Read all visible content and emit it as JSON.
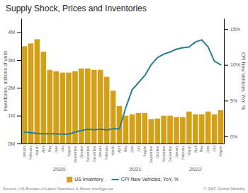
{
  "chart_data": {
    "type": "bar",
    "title": "Supply Shock, Prices and Inventories",
    "ylabel": "Inventories, millions of units",
    "y2label": "CPI New Vehicles, YoY, %",
    "source": "Source: US Bureau of Labor Statistics & Motor Intelligence",
    "credit": "© S&P Global Mobility",
    "categories": [
      "January",
      "February",
      "March",
      "April",
      "May",
      "June",
      "July",
      "August",
      "September",
      "October",
      "November",
      "December",
      "January",
      "February",
      "March",
      "April",
      "May",
      "June",
      "July",
      "August",
      "September",
      "October",
      "November",
      "December",
      "January",
      "February",
      "March",
      "April",
      "May",
      "June",
      "July",
      "August"
    ],
    "series": [
      {
        "name": "US Inventory",
        "type": "bar",
        "color": "#D4A017",
        "values": [
          3.5,
          3.6,
          3.75,
          3.3,
          2.65,
          2.6,
          2.55,
          2.55,
          2.6,
          2.7,
          2.7,
          2.65,
          2.65,
          2.4,
          1.9,
          1.35,
          1.0,
          1.05,
          1.1,
          1.1,
          0.88,
          0.9,
          1.0,
          1.0,
          0.95,
          0.95,
          1.15,
          1.05,
          1.05,
          1.15,
          1.05,
          1.2
        ]
      },
      {
        "name": "CPI New Vehicles, YoY, %",
        "type": "line",
        "color": "#2B7F8C",
        "axis": "y2",
        "values": [
          0.6,
          0.5,
          0.4,
          0.35,
          0.35,
          0.35,
          0.3,
          0.3,
          0.6,
          0.8,
          1.0,
          0.9,
          1.0,
          0.9,
          1.05,
          1.05,
          4.0,
          6.5,
          7.5,
          8.5,
          10.0,
          11.0,
          11.5,
          11.8,
          12.2,
          12.4,
          12.5,
          13.2,
          13.5,
          12.5,
          10.5,
          10.0
        ]
      }
    ],
    "annotations": [
      {
        "text": "2020",
        "x": 5.5
      },
      {
        "text": "2021",
        "x": 17.5
      },
      {
        "text": "2022",
        "x": 27.0
      }
    ],
    "ylim": [
      0,
      4.5
    ],
    "yticks": [
      {
        "value": 0,
        "label": "0M"
      },
      {
        "value": 1,
        "label": "1M"
      },
      {
        "value": 2,
        "label": "2M"
      },
      {
        "value": 3,
        "label": "3M"
      },
      {
        "value": 4,
        "label": "4M"
      }
    ],
    "y2lim": [
      -1.0,
      16.5
    ],
    "y2ticks": [
      {
        "value": 0,
        "label": "0%"
      },
      {
        "value": 5,
        "label": "5%"
      },
      {
        "value": 10,
        "label": "10%"
      },
      {
        "value": 15,
        "label": "15%"
      }
    ],
    "grid": false,
    "legend": "bottom"
  }
}
